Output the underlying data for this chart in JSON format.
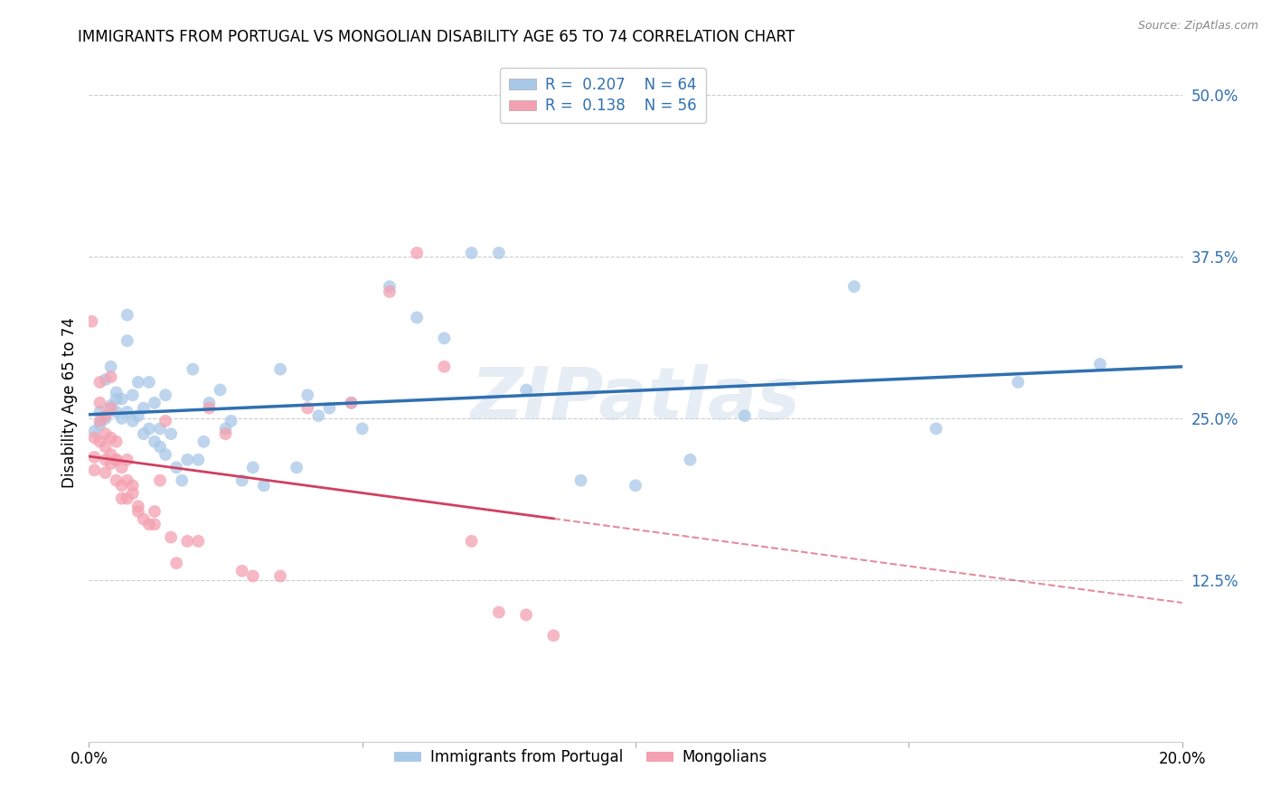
{
  "title": "IMMIGRANTS FROM PORTUGAL VS MONGOLIAN DISABILITY AGE 65 TO 74 CORRELATION CHART",
  "source": "Source: ZipAtlas.com",
  "ylabel": "Disability Age 65 to 74",
  "legend_label1": "Immigrants from Portugal",
  "legend_label2": "Mongolians",
  "R1": 0.207,
  "N1": 64,
  "R2": 0.138,
  "N2": 56,
  "color1": "#a8c8e8",
  "color2": "#f4a0b0",
  "trendline1_color": "#3070b0",
  "trendline2_color": "#d04060",
  "background": "#ffffff",
  "grid_color": "#cccccc",
  "ytick_color": "#3070b0",
  "xlim": [
    0.0,
    0.2
  ],
  "ylim": [
    0.0,
    0.53
  ],
  "ytick_vals": [
    0.125,
    0.25,
    0.375,
    0.5
  ],
  "ytick_labels": [
    "12.5%",
    "25.0%",
    "37.5%",
    "50.0%"
  ],
  "xtick_vals": [
    0.0,
    0.05,
    0.1,
    0.15,
    0.2
  ],
  "xtick_labels": [
    "0.0%",
    "",
    "",
    "",
    "20.0%"
  ],
  "blue_scatter_x": [
    0.001,
    0.002,
    0.002,
    0.003,
    0.003,
    0.004,
    0.004,
    0.005,
    0.005,
    0.005,
    0.006,
    0.006,
    0.007,
    0.007,
    0.007,
    0.008,
    0.008,
    0.009,
    0.009,
    0.01,
    0.01,
    0.011,
    0.011,
    0.012,
    0.012,
    0.013,
    0.013,
    0.014,
    0.014,
    0.015,
    0.016,
    0.017,
    0.018,
    0.019,
    0.02,
    0.021,
    0.022,
    0.024,
    0.025,
    0.026,
    0.028,
    0.03,
    0.032,
    0.035,
    0.038,
    0.04,
    0.042,
    0.044,
    0.048,
    0.05,
    0.055,
    0.06,
    0.065,
    0.07,
    0.075,
    0.08,
    0.09,
    0.1,
    0.11,
    0.12,
    0.14,
    0.155,
    0.17,
    0.185
  ],
  "blue_scatter_y": [
    0.24,
    0.245,
    0.255,
    0.25,
    0.28,
    0.26,
    0.29,
    0.255,
    0.265,
    0.27,
    0.25,
    0.265,
    0.255,
    0.31,
    0.33,
    0.248,
    0.268,
    0.252,
    0.278,
    0.238,
    0.258,
    0.242,
    0.278,
    0.232,
    0.262,
    0.228,
    0.242,
    0.222,
    0.268,
    0.238,
    0.212,
    0.202,
    0.218,
    0.288,
    0.218,
    0.232,
    0.262,
    0.272,
    0.242,
    0.248,
    0.202,
    0.212,
    0.198,
    0.288,
    0.212,
    0.268,
    0.252,
    0.258,
    0.262,
    0.242,
    0.352,
    0.328,
    0.312,
    0.378,
    0.378,
    0.272,
    0.202,
    0.198,
    0.218,
    0.252,
    0.352,
    0.242,
    0.278,
    0.292
  ],
  "pink_scatter_x": [
    0.0005,
    0.001,
    0.001,
    0.001,
    0.002,
    0.002,
    0.002,
    0.002,
    0.003,
    0.003,
    0.003,
    0.003,
    0.003,
    0.004,
    0.004,
    0.004,
    0.004,
    0.004,
    0.005,
    0.005,
    0.005,
    0.005,
    0.006,
    0.006,
    0.006,
    0.007,
    0.007,
    0.007,
    0.008,
    0.008,
    0.009,
    0.009,
    0.01,
    0.011,
    0.012,
    0.012,
    0.013,
    0.014,
    0.015,
    0.016,
    0.018,
    0.02,
    0.022,
    0.025,
    0.028,
    0.03,
    0.035,
    0.04,
    0.048,
    0.055,
    0.06,
    0.065,
    0.07,
    0.075,
    0.08,
    0.085
  ],
  "pink_scatter_y": [
    0.325,
    0.235,
    0.22,
    0.21,
    0.278,
    0.262,
    0.248,
    0.232,
    0.252,
    0.238,
    0.228,
    0.218,
    0.208,
    0.282,
    0.258,
    0.235,
    0.222,
    0.215,
    0.218,
    0.232,
    0.218,
    0.202,
    0.212,
    0.198,
    0.188,
    0.202,
    0.218,
    0.188,
    0.198,
    0.192,
    0.182,
    0.178,
    0.172,
    0.168,
    0.178,
    0.168,
    0.202,
    0.248,
    0.158,
    0.138,
    0.155,
    0.155,
    0.258,
    0.238,
    0.132,
    0.128,
    0.128,
    0.258,
    0.262,
    0.348,
    0.378,
    0.29,
    0.155,
    0.1,
    0.098,
    0.082
  ]
}
